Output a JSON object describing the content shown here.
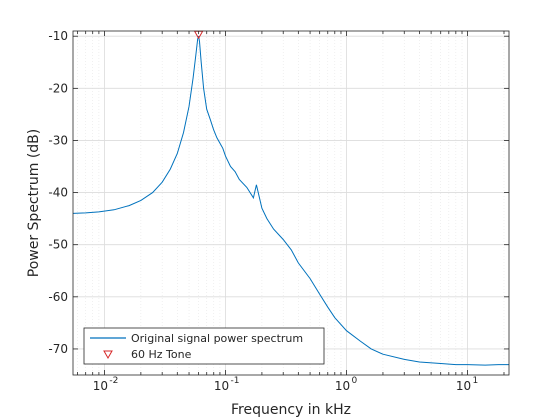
{
  "chart_data": {
    "type": "line",
    "xlabel": "Frequency in kHz",
    "ylabel": "Power Spectrum (dB)",
    "xscale": "log",
    "xlim": [
      0.0055,
      22
    ],
    "ylim": [
      -75,
      -9
    ],
    "grid": true,
    "legend_position": "bottom-left",
    "x_tick_labels": [
      "10",
      "10",
      "10",
      "10"
    ],
    "x_tick_exponents": [
      "-2",
      "-1",
      "0",
      "1"
    ],
    "x_tick_values": [
      0.01,
      0.1,
      1,
      10
    ],
    "y_tick_labels": [
      "-10",
      "-20",
      "-30",
      "-40",
      "-50",
      "-60",
      "-70"
    ],
    "y_tick_values": [
      -10,
      -20,
      -30,
      -40,
      -50,
      -60,
      -70
    ],
    "series": [
      {
        "name": "Original signal power spectrum",
        "color": "#0072BD",
        "x": [
          0.0055,
          0.007,
          0.009,
          0.012,
          0.016,
          0.02,
          0.025,
          0.03,
          0.035,
          0.04,
          0.045,
          0.05,
          0.054,
          0.057,
          0.059,
          0.06,
          0.061,
          0.063,
          0.066,
          0.07,
          0.075,
          0.08,
          0.085,
          0.09,
          0.095,
          0.1,
          0.11,
          0.12,
          0.13,
          0.15,
          0.17,
          0.18,
          0.2,
          0.22,
          0.25,
          0.3,
          0.35,
          0.4,
          0.5,
          0.6,
          0.7,
          0.8,
          1.0,
          1.3,
          1.6,
          2.0,
          3.0,
          4.0,
          6.0,
          8.0,
          10.0,
          14.0,
          18.0,
          22.0
        ],
        "y": [
          -44,
          -43.9,
          -43.7,
          -43.3,
          -42.5,
          -41.5,
          -40,
          -38,
          -35.5,
          -32.5,
          -28.5,
          -23.5,
          -18,
          -13.5,
          -10.5,
          -10,
          -11,
          -15,
          -20,
          -24,
          -26,
          -28,
          -29.5,
          -30.5,
          -31.5,
          -33,
          -35,
          -36,
          -37.5,
          -39,
          -41,
          -38.5,
          -43,
          -45,
          -47,
          -49,
          -51,
          -53.5,
          -56.5,
          -59.5,
          -62,
          -64,
          -66.5,
          -68.5,
          -70,
          -71,
          -72,
          -72.5,
          -72.8,
          -73,
          -73,
          -73.1,
          -73,
          -73
        ]
      }
    ],
    "markers": [
      {
        "name": "60 Hz Tone",
        "x": 0.06,
        "y": -10,
        "shape": "triangle-down",
        "color": "#D62728"
      }
    ]
  }
}
